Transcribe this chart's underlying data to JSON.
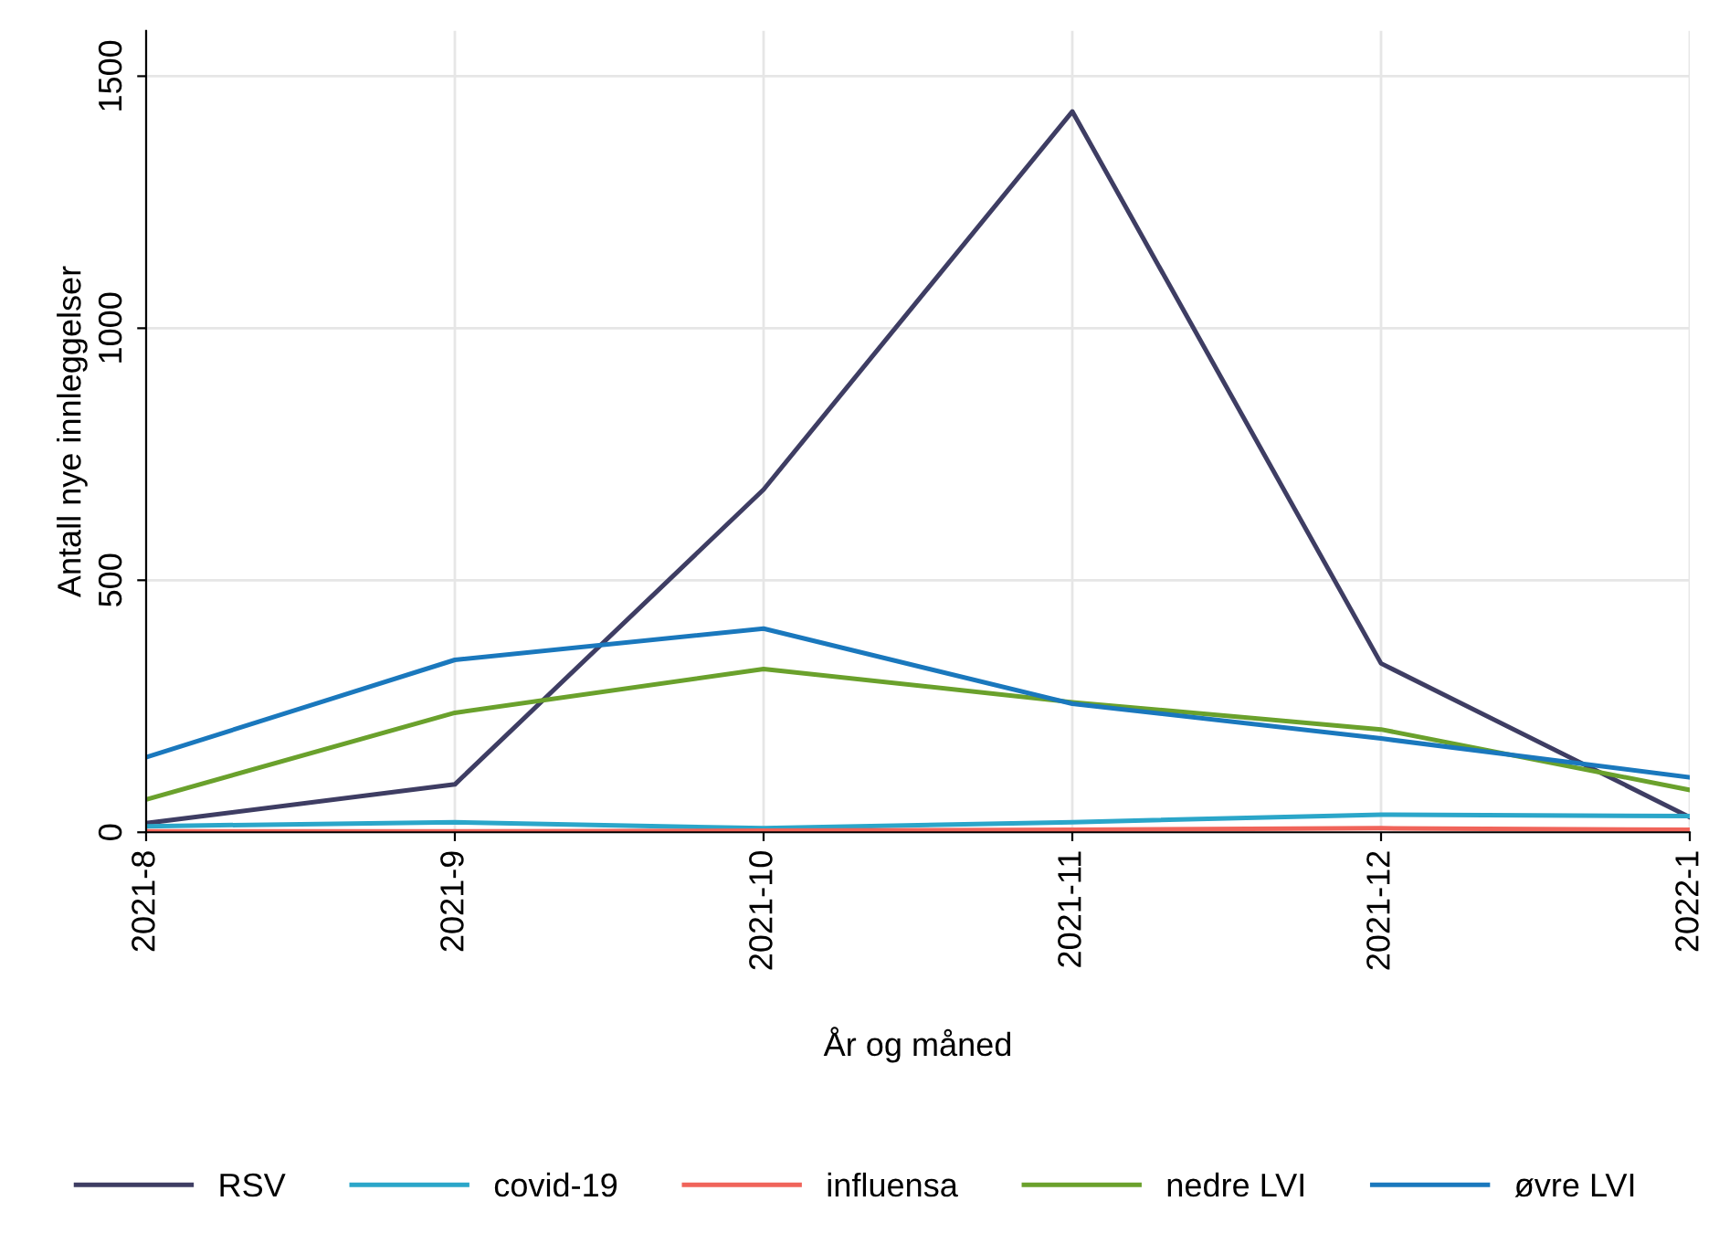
{
  "chart_data": {
    "type": "line",
    "xlabel": "År og måned",
    "ylabel": "Antall nye innleggelser",
    "categories": [
      "2021-8",
      "2021-9",
      "2021-10",
      "2021-11",
      "2021-12",
      "2022-1"
    ],
    "series": [
      {
        "name": "RSV",
        "color": "#3e3d63",
        "values": [
          18,
          95,
          680,
          1430,
          335,
          30
        ]
      },
      {
        "name": "covid-19",
        "color": "#2ba6c9",
        "values": [
          12,
          20,
          8,
          20,
          35,
          32
        ]
      },
      {
        "name": "influensa",
        "color": "#f0645a",
        "values": [
          2,
          2,
          3,
          5,
          8,
          5
        ]
      },
      {
        "name": "nedre LVI",
        "color": "#6aa12c",
        "values": [
          65,
          237,
          324,
          258,
          204,
          84
        ]
      },
      {
        "name": "øvre LVI",
        "color": "#1a78bd",
        "values": [
          149,
          342,
          404,
          255,
          186,
          109
        ]
      }
    ],
    "ylim": [
      0,
      1590
    ],
    "yticks": [
      0,
      500,
      1000,
      1500
    ],
    "grid": true,
    "legend": "bottom",
    "marker": "none",
    "line_style": "solid"
  }
}
